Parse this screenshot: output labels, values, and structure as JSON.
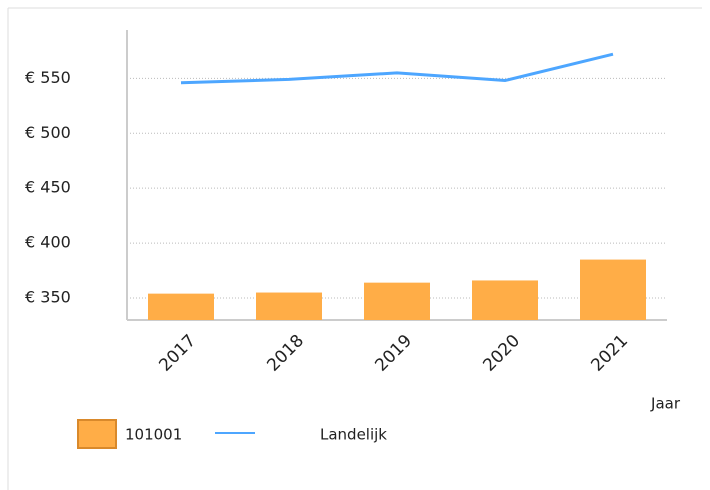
{
  "chart_data": {
    "type": "bar",
    "categories": [
      "2017",
      "2018",
      "2019",
      "2020",
      "2021"
    ],
    "series": [
      {
        "name": "101001",
        "type": "bar",
        "color": "#ffad47",
        "values": [
          354,
          355,
          364,
          366,
          385
        ]
      },
      {
        "name": "Landelijk",
        "type": "line",
        "color": "#4da6ff",
        "values": [
          546,
          549,
          555,
          548,
          572
        ]
      }
    ],
    "x_label": "Jaar",
    "ylim": [
      330,
      594
    ],
    "yticks": [
      {
        "value": 350,
        "label": "€ 350"
      },
      {
        "value": 400,
        "label": "€ 400"
      },
      {
        "value": 450,
        "label": "€ 450"
      },
      {
        "value": 500,
        "label": "€ 500"
      },
      {
        "value": 550,
        "label": "€ 550"
      }
    ],
    "grid": true
  }
}
